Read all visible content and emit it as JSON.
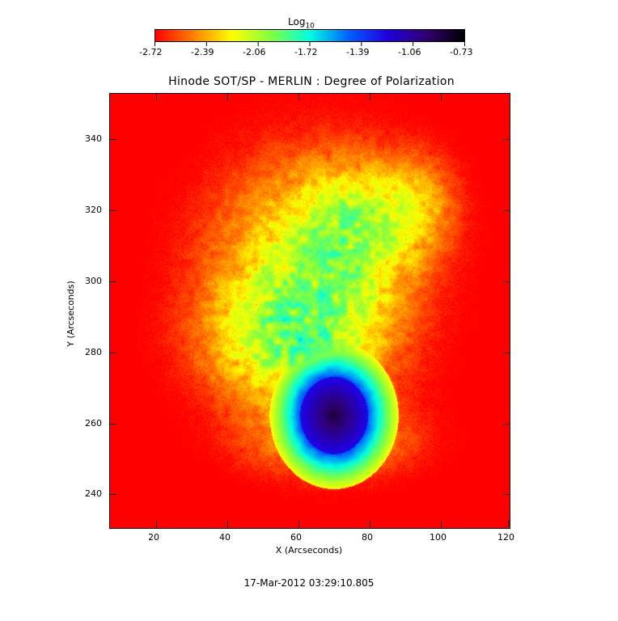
{
  "colorbar": {
    "label_base": "Log",
    "label_sub": "10",
    "ticks": [
      "-2.72",
      "-2.39",
      "-2.06",
      "-1.72",
      "-1.39",
      "-1.06",
      "-0.73"
    ],
    "colors": [
      "#ff0000",
      "#ff8000",
      "#ffff00",
      "#80ff40",
      "#00ffe0",
      "#0060ff",
      "#2000e0",
      "#300070",
      "#000000"
    ]
  },
  "plot": {
    "title": "Hinode SOT/SP - MERLIN : Degree of Polarization",
    "x_label": "X (Arcseconds)",
    "y_label": "Y (Arcseconds)",
    "x_ticks": [
      "20",
      "40",
      "60",
      "80",
      "100",
      "120"
    ],
    "y_ticks": [
      "240",
      "260",
      "280",
      "300",
      "320",
      "340"
    ]
  },
  "timestamp": "17-Mar-2012 03:29:10.805"
}
